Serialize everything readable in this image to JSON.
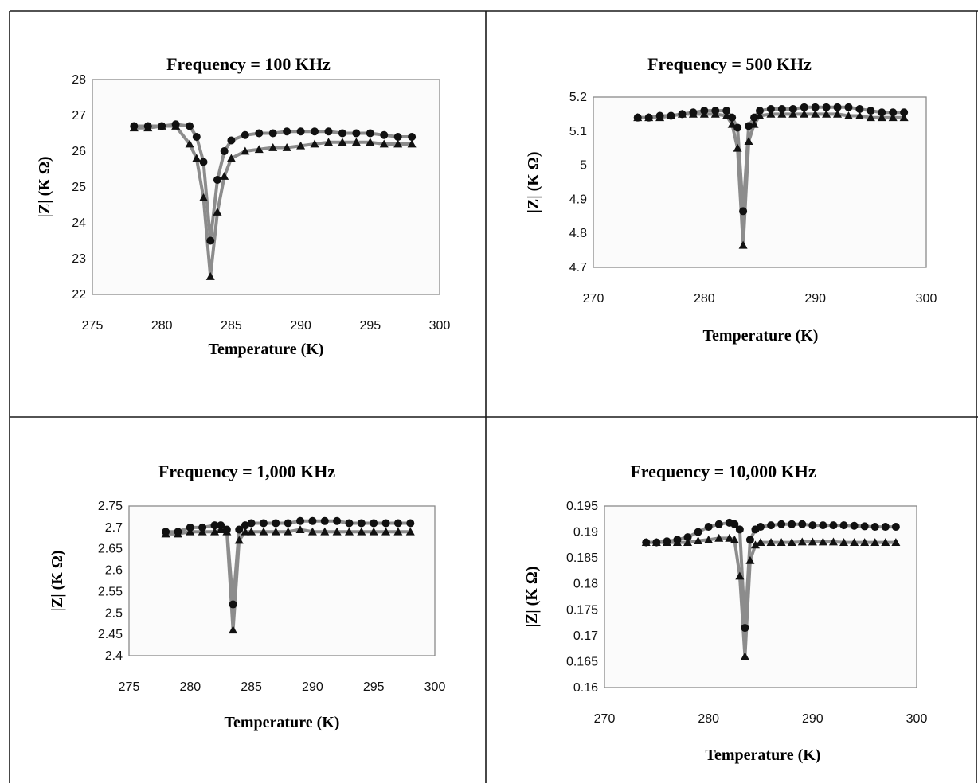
{
  "chart_data": [
    {
      "type": "scatter",
      "title": "Frequency = 100 KHz",
      "xlabel": "Temperature (K)",
      "ylabel": "|Z| (K Ω)",
      "xlim": [
        275,
        300
      ],
      "ylim": [
        22,
        28
      ],
      "xticks": [
        275,
        280,
        285,
        290,
        295,
        300
      ],
      "yticks": [
        22,
        23,
        24,
        25,
        26,
        27,
        28
      ],
      "yprec": 0,
      "grid": false,
      "series": [
        {
          "marker": "circle",
          "x": [
            278,
            279,
            280,
            281,
            282,
            282.5,
            283,
            283.5,
            284,
            284.5,
            285,
            286,
            287,
            288,
            289,
            290,
            291,
            292,
            293,
            294,
            295,
            296,
            297,
            298
          ],
          "y": [
            26.7,
            26.7,
            26.7,
            26.75,
            26.7,
            26.4,
            25.7,
            23.5,
            25.2,
            26.0,
            26.3,
            26.45,
            26.5,
            26.5,
            26.55,
            26.55,
            26.55,
            26.55,
            26.5,
            26.5,
            26.5,
            26.45,
            26.4,
            26.4
          ]
        },
        {
          "marker": "triangle",
          "x": [
            278,
            279,
            280,
            281,
            282,
            282.5,
            283,
            283.5,
            284,
            284.5,
            285,
            286,
            287,
            288,
            289,
            290,
            291,
            292,
            293,
            294,
            295,
            296,
            297,
            298
          ],
          "y": [
            26.65,
            26.65,
            26.7,
            26.7,
            26.2,
            25.8,
            24.7,
            22.5,
            24.3,
            25.3,
            25.8,
            26.0,
            26.05,
            26.1,
            26.1,
            26.15,
            26.2,
            26.25,
            26.25,
            26.25,
            26.25,
            26.2,
            26.2,
            26.2
          ]
        }
      ]
    },
    {
      "type": "scatter",
      "title": "Frequency = 500 KHz",
      "xlabel": "Temperature (K)",
      "ylabel": "|Z| (K Ω)",
      "xlim": [
        270,
        300
      ],
      "ylim": [
        4.7,
        5.2
      ],
      "xticks": [
        270,
        280,
        290,
        300
      ],
      "yticks": [
        4.7,
        4.8,
        4.9,
        5,
        5.1,
        5.2
      ],
      "yprec": 1,
      "grid": false,
      "series": [
        {
          "marker": "circle",
          "x": [
            274,
            275,
            276,
            277,
            278,
            279,
            280,
            281,
            282,
            282.5,
            283,
            283.5,
            284,
            284.5,
            285,
            286,
            287,
            288,
            289,
            290,
            291,
            292,
            293,
            294,
            295,
            296,
            297,
            298
          ],
          "y": [
            5.14,
            5.14,
            5.145,
            5.145,
            5.15,
            5.155,
            5.16,
            5.16,
            5.16,
            5.14,
            5.11,
            4.865,
            5.115,
            5.14,
            5.16,
            5.165,
            5.165,
            5.165,
            5.17,
            5.17,
            5.17,
            5.17,
            5.17,
            5.165,
            5.16,
            5.155,
            5.155,
            5.155
          ]
        },
        {
          "marker": "triangle",
          "x": [
            274,
            275,
            276,
            277,
            278,
            279,
            280,
            281,
            282,
            282.5,
            283,
            283.5,
            284,
            284.5,
            285,
            286,
            287,
            288,
            289,
            290,
            291,
            292,
            293,
            294,
            295,
            296,
            297,
            298
          ],
          "y": [
            5.14,
            5.14,
            5.14,
            5.145,
            5.15,
            5.15,
            5.15,
            5.15,
            5.145,
            5.12,
            5.05,
            4.765,
            5.07,
            5.12,
            5.145,
            5.15,
            5.15,
            5.15,
            5.15,
            5.15,
            5.15,
            5.15,
            5.145,
            5.145,
            5.14,
            5.14,
            5.14,
            5.14
          ]
        }
      ]
    },
    {
      "type": "scatter",
      "title": "Frequency = 1,000 KHz",
      "xlabel": "Temperature (K)",
      "ylabel": "|Z| (K Ω)",
      "xlim": [
        275,
        300
      ],
      "ylim": [
        2.4,
        2.75
      ],
      "xticks": [
        275,
        280,
        285,
        290,
        295,
        300
      ],
      "yticks": [
        2.4,
        2.45,
        2.5,
        2.55,
        2.6,
        2.65,
        2.7,
        2.75
      ],
      "yprec": 2,
      "grid": false,
      "series": [
        {
          "marker": "circle",
          "x": [
            278,
            279,
            280,
            281,
            282,
            282.5,
            283,
            283.5,
            284,
            284.5,
            285,
            286,
            287,
            288,
            289,
            290,
            291,
            292,
            293,
            294,
            295,
            296,
            297,
            298
          ],
          "y": [
            2.69,
            2.69,
            2.7,
            2.7,
            2.705,
            2.705,
            2.695,
            2.52,
            2.695,
            2.705,
            2.71,
            2.71,
            2.71,
            2.71,
            2.715,
            2.715,
            2.715,
            2.715,
            2.71,
            2.71,
            2.71,
            2.71,
            2.71,
            2.71
          ]
        },
        {
          "marker": "triangle",
          "x": [
            278,
            279,
            280,
            281,
            282,
            282.5,
            283,
            283.5,
            284,
            284.5,
            285,
            286,
            287,
            288,
            289,
            290,
            291,
            292,
            293,
            294,
            295,
            296,
            297,
            298
          ],
          "y": [
            2.685,
            2.685,
            2.69,
            2.69,
            2.69,
            2.695,
            2.69,
            2.46,
            2.67,
            2.69,
            2.69,
            2.69,
            2.69,
            2.69,
            2.695,
            2.69,
            2.69,
            2.69,
            2.69,
            2.69,
            2.69,
            2.69,
            2.69,
            2.69
          ]
        }
      ]
    },
    {
      "type": "scatter",
      "title": "Frequency = 10,000 KHz",
      "xlabel": "Temperature (K)",
      "ylabel": "|Z| (K Ω)",
      "xlim": [
        270,
        300
      ],
      "ylim": [
        0.16,
        0.195
      ],
      "xticks": [
        270,
        280,
        290,
        300
      ],
      "yticks": [
        0.16,
        0.165,
        0.17,
        0.175,
        0.18,
        0.185,
        0.19,
        0.195
      ],
      "yprec": 3,
      "grid": false,
      "series": [
        {
          "marker": "circle",
          "x": [
            274,
            275,
            276,
            277,
            278,
            279,
            280,
            281,
            282,
            282.5,
            283,
            283.5,
            284,
            284.5,
            285,
            286,
            287,
            288,
            289,
            290,
            291,
            292,
            293,
            294,
            295,
            296,
            297,
            298
          ],
          "y": [
            0.188,
            0.188,
            0.1882,
            0.1885,
            0.189,
            0.19,
            0.191,
            0.1915,
            0.1918,
            0.1915,
            0.1905,
            0.1715,
            0.1885,
            0.1905,
            0.191,
            0.1913,
            0.1915,
            0.1915,
            0.1915,
            0.1913,
            0.1913,
            0.1913,
            0.1913,
            0.1912,
            0.1911,
            0.191,
            0.191,
            0.191
          ]
        },
        {
          "marker": "triangle",
          "x": [
            274,
            275,
            276,
            277,
            278,
            279,
            280,
            281,
            282,
            282.5,
            283,
            283.5,
            284,
            284.5,
            285,
            286,
            287,
            288,
            289,
            290,
            291,
            292,
            293,
            294,
            295,
            296,
            297,
            298
          ],
          "y": [
            0.188,
            0.188,
            0.188,
            0.188,
            0.188,
            0.1883,
            0.1885,
            0.1888,
            0.1888,
            0.1885,
            0.1815,
            0.166,
            0.1845,
            0.1875,
            0.188,
            0.188,
            0.188,
            0.188,
            0.1881,
            0.1881,
            0.1881,
            0.1881,
            0.188,
            0.188,
            0.188,
            0.188,
            0.188,
            0.188
          ]
        }
      ]
    }
  ]
}
